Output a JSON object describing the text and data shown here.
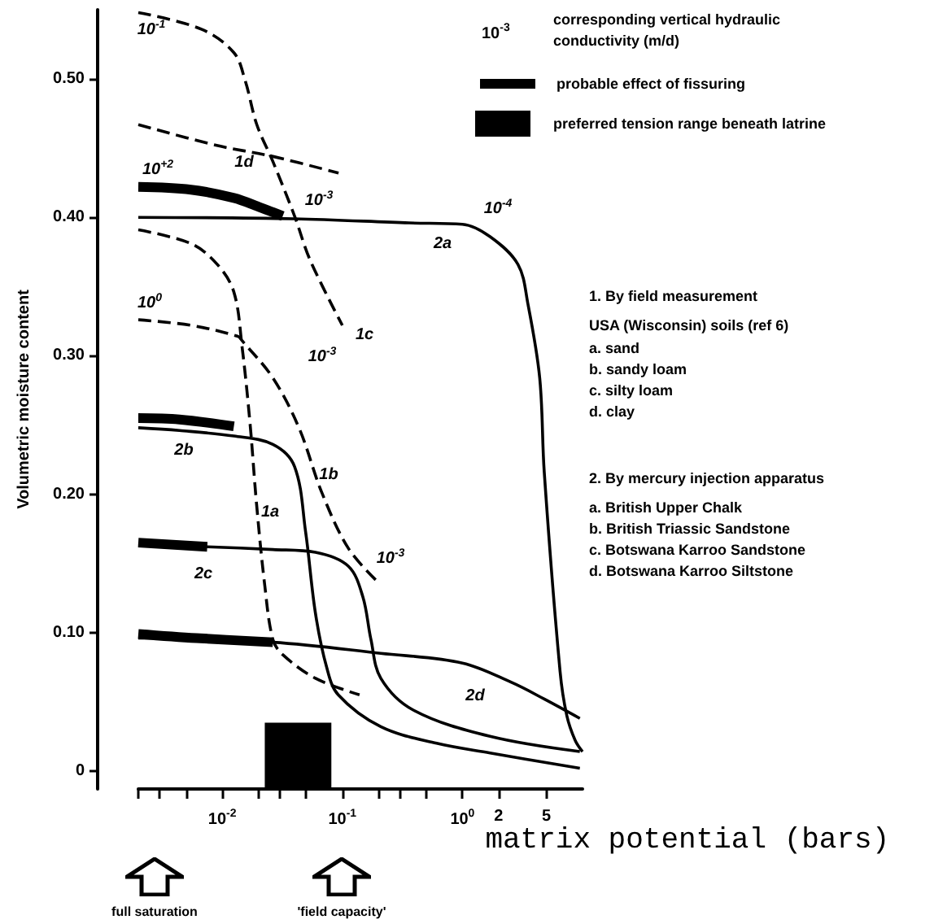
{
  "chart_data": {
    "type": "line",
    "xlabel": "matrix potential (bars)",
    "ylabel": "Volumetric moisture content",
    "log": "x",
    "grid": false,
    "marker": "none",
    "legend": "top right",
    "xlim": [
      0.002,
      10
    ],
    "ylim": [
      -0.013,
      0.55
    ],
    "xticks": [
      {
        "value": 0.002,
        "label": null
      },
      {
        "value": 0.003,
        "label": null
      },
      {
        "value": 0.005,
        "label": null
      },
      {
        "value": 0.01,
        "label": "10$^{-2}$"
      },
      {
        "value": 0.02,
        "label": null
      },
      {
        "value": 0.03,
        "label": null
      },
      {
        "value": 0.05,
        "label": null
      },
      {
        "value": 0.1,
        "label": "10$^{-1}$"
      },
      {
        "value": 0.2,
        "label": null
      },
      {
        "value": 0.3,
        "label": null
      },
      {
        "value": 0.5,
        "label": null
      },
      {
        "value": 1,
        "label": "10$^{0}$"
      },
      2,
      5
    ],
    "yticks": [
      0,
      {
        "value": 0.1,
        "label": "0.10"
      },
      {
        "value": 0.2,
        "label": "0.20"
      },
      {
        "value": 0.3,
        "label": "0.30"
      },
      {
        "value": 0.4,
        "label": "0.40"
      },
      {
        "value": 0.5,
        "label": "0.50"
      }
    ],
    "series": [
      {
        "color": "#000000",
        "line_style": "dashed",
        "x": [
          0.002,
          0.0067,
          0.0125,
          0.0155,
          0.0194,
          0.0265,
          0.04,
          0.054,
          0.1
        ],
        "values": [
          0.548,
          0.536,
          0.519,
          0.499,
          0.467,
          0.44,
          0.401,
          0.369,
          0.322
        ]
      },
      {
        "color": "#000000",
        "line_style": "dashed",
        "x": [
          0.002,
          0.009,
          0.0265,
          0.093
        ],
        "values": [
          0.467,
          0.452,
          0.444,
          0.432
        ]
      },
      {
        "color": "#000000",
        "line_style": "dashed",
        "x": [
          0.002,
          0.0055,
          0.0091,
          0.0125,
          0.0146,
          0.017,
          0.0193,
          0.0226,
          0.0264,
          0.0319,
          0.0597,
          0.139
        ],
        "values": [
          0.391,
          0.381,
          0.366,
          0.346,
          0.307,
          0.252,
          0.193,
          0.134,
          0.095,
          0.084,
          0.067,
          0.055
        ]
      },
      {
        "color": "#000000",
        "line_style": "dashed",
        "x": [
          0.002,
          0.0055,
          0.0135,
          0.0146,
          0.0264,
          0.0435,
          0.0676,
          0.112,
          0.19
        ],
        "values": [
          0.326,
          0.322,
          0.314,
          0.311,
          0.284,
          0.248,
          0.201,
          0.161,
          0.138
        ]
      },
      {
        "color": "#000000",
        "line_style": "solid",
        "x": [
          0.002,
          0.04,
          0.36,
          1,
          1.7,
          2.9,
          3.5,
          4.4,
          4.8,
          6.5,
          7.4,
          8.7,
          10
        ],
        "values": [
          0.4,
          0.399,
          0.396,
          0.395,
          0.386,
          0.366,
          0.338,
          0.284,
          0.216,
          0.072,
          0.04,
          0.022,
          0.014
        ]
      },
      {
        "color": "#000000",
        "line_style": "solid",
        "x": [
          0.002,
          0.0044,
          0.0125,
          0.0264,
          0.04,
          0.0494,
          0.0597,
          0.074,
          0.0925,
          0.209,
          0.61,
          1.7,
          9.5
        ],
        "values": [
          0.248,
          0.246,
          0.242,
          0.236,
          0.22,
          0.173,
          0.114,
          0.075,
          0.055,
          0.032,
          0.02,
          0.013,
          0.002
        ]
      },
      {
        "color": "#000000",
        "line_style": "solid",
        "x": [
          0.002,
          0.0075,
          0.0264,
          0.0597,
          0.112,
          0.148,
          0.173,
          0.209,
          0.39,
          1.7,
          9.5
        ],
        "values": [
          0.164,
          0.162,
          0.16,
          0.158,
          0.148,
          0.126,
          0.095,
          0.067,
          0.044,
          0.025,
          0.014
        ]
      },
      {
        "color": "#000000",
        "line_style": "solid",
        "x": [
          0.002,
          0.0264,
          0.209,
          1,
          2.56,
          4.8,
          9.5
        ],
        "values": [
          0.096,
          0.093,
          0.085,
          0.078,
          0.064,
          0.052,
          0.038
        ]
      },
      {
        "name": "probable effect of fissuring",
        "color": "#000000",
        "line_style": "solid",
        "x": [
          0.002,
          0.0055,
          0.0125,
          0.021,
          0.0319,
          null,
          0.002,
          0.0044,
          0.0125,
          null,
          0.002,
          0.0075,
          null,
          0.002,
          0.0061,
          0.0264
        ],
        "values": [
          0.422,
          0.42,
          0.414,
          0.407,
          0.401,
          null,
          0.255,
          0.254,
          0.249,
          null,
          0.165,
          0.162,
          null,
          0.099,
          0.096,
          0.093
        ]
      }
    ],
    "bands": [
      {
        "axis": "x",
        "from": 0.0226,
        "to": 0.081,
        "label": "preferred tension range beneath latrine",
        "color": "#000000"
      }
    ],
    "annotations": [
      "10$^{-3}$",
      "corresponding vertical hydraulic conductivity (m/d)",
      "1. By field measurement",
      "USA (Wisconsin) soils (ref 6)",
      "a. sand",
      "b. sandy loam",
      "c. silty loam",
      "d. clay",
      "2. By mercury injection apparatus",
      "a. British Upper Chalk",
      "b. British Triassic Sandstone",
      "c. Botswana Karroo Sandstone",
      "d. Botswana Karroo Siltstone",
      "10$^{-1}$",
      "10$^{+2}$",
      "10$^{-3}$",
      "10$^{0}$",
      "10$^{-4}$",
      "10$^{-3}$",
      "10$^{-3}$",
      "1d",
      "1c",
      "2a",
      "1b",
      "2b",
      "1a",
      "2c",
      "2d",
      "full saturation",
      "'field capacity'"
    ]
  }
}
